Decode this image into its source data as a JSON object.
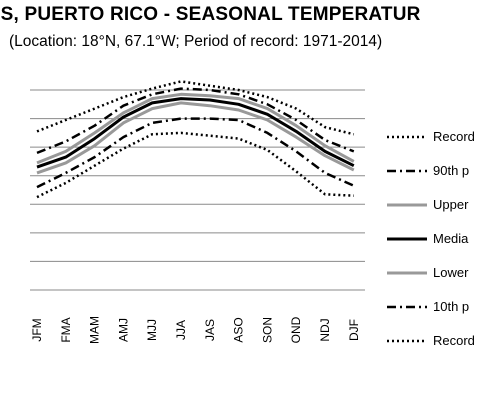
{
  "chart_data": {
    "type": "line",
    "title": "AJAS, PUERTO RICO - SEASONAL TEMPERATUR",
    "subtitle": "(Location: 18°N, 67.1°W; Period of record: 1971-2014)",
    "xlabel": "",
    "ylabel": "",
    "x": [
      "JFM",
      "FMA",
      "MAM",
      "AMJ",
      "MJJ",
      "JJA",
      "JAS",
      "ASO",
      "SON",
      "OND",
      "NDJ",
      "DJF"
    ],
    "ylim": [
      0,
      7
    ],
    "grid": true,
    "legend_position": "right",
    "series": [
      {
        "name": "Record",
        "style": "dotted",
        "color": "#000000",
        "values": [
          5.55,
          5.95,
          6.35,
          6.75,
          7.05,
          7.3,
          7.15,
          7.0,
          6.75,
          6.35,
          5.7,
          5.45
        ]
      },
      {
        "name": "90th p",
        "style": "dashdot",
        "color": "#000000",
        "values": [
          4.8,
          5.2,
          5.75,
          6.45,
          6.85,
          7.05,
          7.0,
          6.85,
          6.5,
          5.95,
          5.25,
          4.85
        ]
      },
      {
        "name": "Upper",
        "style": "solid",
        "color": "#999999",
        "values": [
          4.45,
          4.85,
          5.5,
          6.2,
          6.7,
          6.85,
          6.8,
          6.7,
          6.35,
          5.75,
          5.05,
          4.5
        ]
      },
      {
        "name": "Media",
        "style": "solid",
        "color": "#000000",
        "values": [
          4.3,
          4.65,
          5.3,
          6.05,
          6.55,
          6.7,
          6.65,
          6.5,
          6.15,
          5.55,
          4.85,
          4.35
        ]
      },
      {
        "name": "Lower",
        "style": "solid",
        "color": "#999999",
        "values": [
          4.1,
          4.45,
          5.05,
          5.85,
          6.35,
          6.55,
          6.45,
          6.3,
          5.95,
          5.35,
          4.7,
          4.2
        ]
      },
      {
        "name": "10th p",
        "style": "dashdot",
        "color": "#000000",
        "values": [
          3.6,
          4.1,
          4.65,
          5.35,
          5.85,
          6.0,
          6.0,
          5.95,
          5.5,
          4.85,
          4.1,
          3.65
        ]
      },
      {
        "name": "Record",
        "style": "dotted",
        "color": "#000000",
        "values": [
          3.25,
          3.75,
          4.35,
          4.95,
          5.45,
          5.5,
          5.4,
          5.3,
          4.9,
          4.15,
          3.35,
          3.3
        ]
      }
    ]
  }
}
